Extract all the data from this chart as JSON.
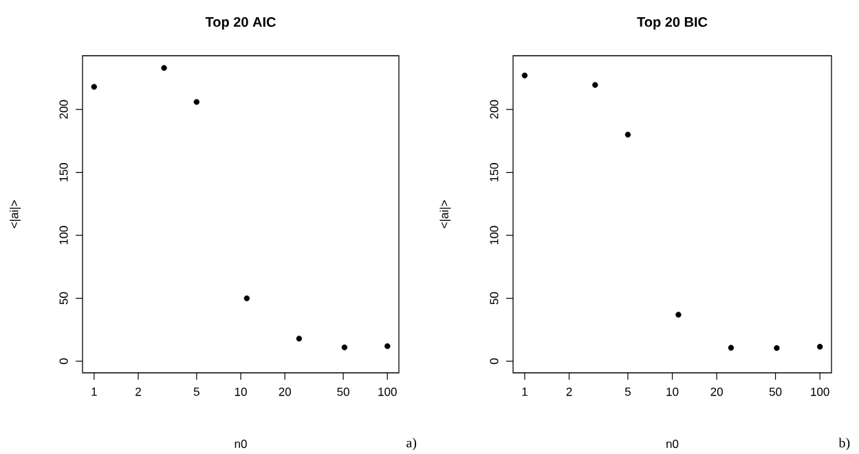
{
  "chart_data": [
    {
      "type": "scatter",
      "title": "Top 20 AIC",
      "xlabel": "n0",
      "ylabel": "<|ai|>",
      "x": [
        1,
        3,
        5,
        11,
        25,
        51,
        100
      ],
      "values": [
        218,
        233,
        206,
        50,
        18,
        11,
        12
      ],
      "color": "#000000",
      "marker": "circle",
      "log": "x",
      "xlim": [
        0.834,
        119.8
      ],
      "ylim": [
        -9.2,
        242.7
      ],
      "xticks": [
        1,
        2,
        5,
        10,
        20,
        50,
        100
      ],
      "yticks": [
        0,
        50,
        100,
        150,
        200
      ],
      "annotations": [
        "a)"
      ]
    },
    {
      "type": "scatter",
      "title": "Top 20 BIC",
      "xlabel": "n0",
      "ylabel": "<|ai|>",
      "x": [
        1,
        3,
        5,
        11,
        25,
        51,
        100
      ],
      "values": [
        227,
        219.5,
        180,
        37,
        10.7,
        10.5,
        11.5
      ],
      "color": "#000000",
      "marker": "circle",
      "log": "x",
      "xlim": [
        0.834,
        119.8
      ],
      "ylim": [
        -9.2,
        242.7
      ],
      "xticks": [
        1,
        2,
        5,
        10,
        20,
        50,
        100
      ],
      "yticks": [
        0,
        50,
        100,
        150,
        200
      ],
      "annotations": [
        "b)"
      ]
    }
  ]
}
